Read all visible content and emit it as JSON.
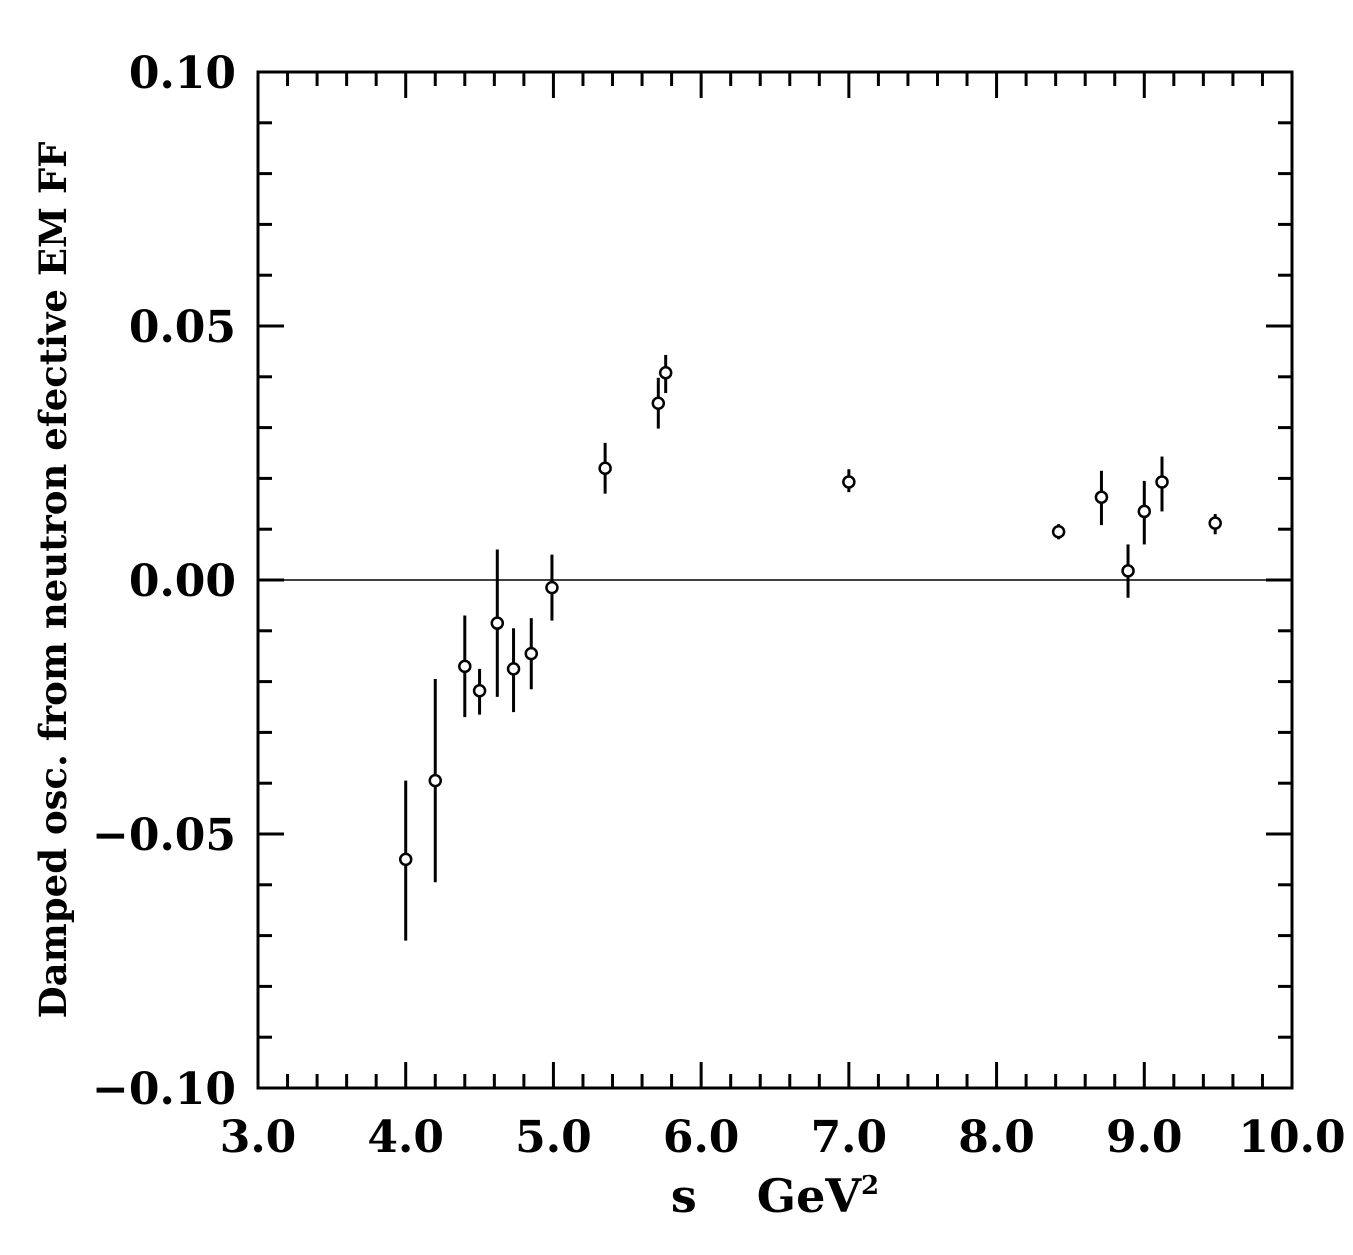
{
  "chart_data": {
    "type": "scatter",
    "title": "",
    "xlabel": "s",
    "xlabel_unit": "GeV",
    "xlabel_unit_exp": "2",
    "ylabel": "Damped osc. from neutron efective EM FF",
    "xlim": [
      3.0,
      10.0
    ],
    "ylim": [
      -0.1,
      0.1
    ],
    "x_ticks": [
      3.0,
      4.0,
      5.0,
      6.0,
      7.0,
      8.0,
      9.0,
      10.0
    ],
    "x_tick_labels": [
      "3.0",
      "4.0",
      "5.0",
      "6.0",
      "7.0",
      "8.0",
      "9.0",
      "10.0"
    ],
    "y_ticks": [
      -0.1,
      -0.05,
      0.0,
      0.05,
      0.1
    ],
    "y_tick_labels": [
      "−0.10",
      "−0.05",
      "0.00",
      "0.05",
      "0.10"
    ],
    "reference_line_y": 0.0,
    "grid": false,
    "series": [
      {
        "x": [
          4.0,
          4.2,
          4.4,
          4.5,
          4.62,
          4.73,
          4.85,
          4.99,
          5.35,
          5.71,
          5.76,
          7.0,
          8.42,
          8.71,
          8.89,
          9.0,
          9.12,
          9.48
        ],
        "y": [
          -0.055,
          -0.0395,
          -0.017,
          -0.0218,
          -0.0085,
          -0.0175,
          -0.0145,
          -0.0015,
          0.022,
          0.0348,
          0.0408,
          0.0193,
          0.0095,
          0.0163,
          0.0018,
          0.0135,
          0.0193,
          0.0112
        ],
        "y_lower": [
          -0.071,
          -0.0595,
          -0.027,
          -0.0265,
          -0.023,
          -0.026,
          -0.0215,
          -0.008,
          0.017,
          0.0298,
          0.0368,
          0.0173,
          0.008,
          0.0108,
          -0.0035,
          0.007,
          0.0135,
          0.009
        ],
        "y_upper": [
          -0.0395,
          -0.0195,
          -0.007,
          -0.0175,
          0.006,
          -0.0095,
          -0.0075,
          0.005,
          0.027,
          0.0398,
          0.0443,
          0.0218,
          0.011,
          0.0215,
          0.007,
          0.0195,
          0.0243,
          0.013
        ]
      }
    ]
  }
}
